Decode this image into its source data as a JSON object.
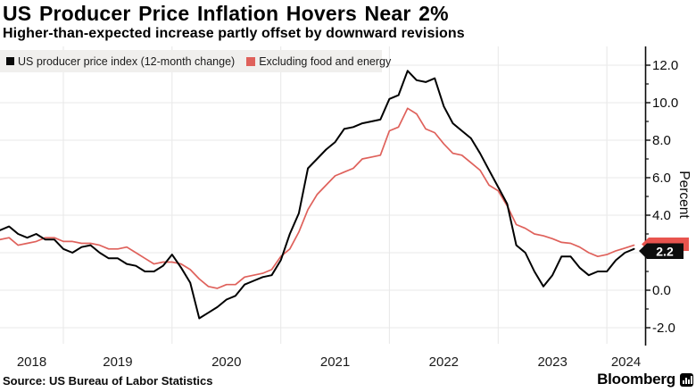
{
  "header": {
    "title": "US Producer Price Inflation Hovers Near 2%",
    "subtitle": "Higher-than-expected increase partly offset by downward revisions"
  },
  "legend": {
    "items": [
      {
        "label": "US producer price index (12-month change)",
        "color": "#0a0a0a"
      },
      {
        "label": "Excluding food and energy",
        "color": "#df615b"
      }
    ]
  },
  "chart_data": {
    "type": "line",
    "frequency": "monthly",
    "x_start": "2018-06",
    "x_end": "2024-04",
    "year_labels": [
      "2018",
      "2019",
      "2020",
      "2021",
      "2022",
      "2023",
      "2024"
    ],
    "ylabel": "Percent",
    "ylim": [
      -3,
      13
    ],
    "y_ticks": [
      -2.0,
      0.0,
      2.0,
      4.0,
      6.0,
      8.0,
      10.0,
      12.0
    ],
    "y_tick_format": "one-decimal",
    "y_tick_hidden_by_badge": 2.0,
    "grid": true,
    "legend_position": "top-left",
    "end_label": {
      "value": "2.2",
      "badge_front_color": "#0d0d0d",
      "badge_back_color": "#e8544e",
      "text_color": "#ffffff"
    },
    "series": [
      {
        "name": "US producer price index (12-month change)",
        "color": "#000000",
        "values": [
          3.2,
          3.4,
          3.0,
          2.8,
          3.0,
          2.7,
          2.7,
          2.2,
          2.0,
          2.3,
          2.4,
          2.0,
          1.7,
          1.7,
          1.4,
          1.3,
          1.0,
          1.0,
          1.3,
          1.9,
          1.2,
          0.4,
          -1.5,
          -1.2,
          -0.9,
          -0.5,
          -0.3,
          0.3,
          0.5,
          0.7,
          0.8,
          1.6,
          3.0,
          4.1,
          6.5,
          7.0,
          7.5,
          7.9,
          8.6,
          8.7,
          8.9,
          9.0,
          9.1,
          10.2,
          10.4,
          11.7,
          11.2,
          11.1,
          11.3,
          9.8,
          8.9,
          8.5,
          8.1,
          7.3,
          6.4,
          5.5,
          4.6,
          2.4,
          2.0,
          1.0,
          0.2,
          0.8,
          1.8,
          1.8,
          1.2,
          0.8,
          1.0,
          1.0,
          1.6,
          2.0,
          2.2
        ]
      },
      {
        "name": "Excluding food and energy",
        "color": "#df615b",
        "values": [
          2.7,
          2.8,
          2.4,
          2.5,
          2.6,
          2.8,
          2.8,
          2.6,
          2.6,
          2.5,
          2.5,
          2.4,
          2.2,
          2.2,
          2.3,
          2.0,
          1.7,
          1.4,
          1.5,
          1.5,
          1.4,
          1.1,
          0.6,
          0.2,
          0.1,
          0.3,
          0.3,
          0.7,
          0.8,
          0.9,
          1.1,
          1.8,
          2.2,
          3.1,
          4.3,
          5.1,
          5.6,
          6.1,
          6.3,
          6.5,
          7.0,
          7.1,
          7.2,
          8.5,
          8.7,
          9.7,
          9.4,
          8.6,
          8.4,
          7.8,
          7.3,
          7.2,
          6.8,
          6.4,
          5.6,
          5.3,
          4.5,
          3.5,
          3.3,
          3.0,
          2.9,
          2.75,
          2.55,
          2.5,
          2.3,
          2.0,
          1.8,
          1.9,
          2.1,
          2.25,
          2.4
        ]
      }
    ]
  },
  "footer": {
    "source": "Source: US Bureau of Labor Statistics",
    "brand": "Bloomberg"
  }
}
